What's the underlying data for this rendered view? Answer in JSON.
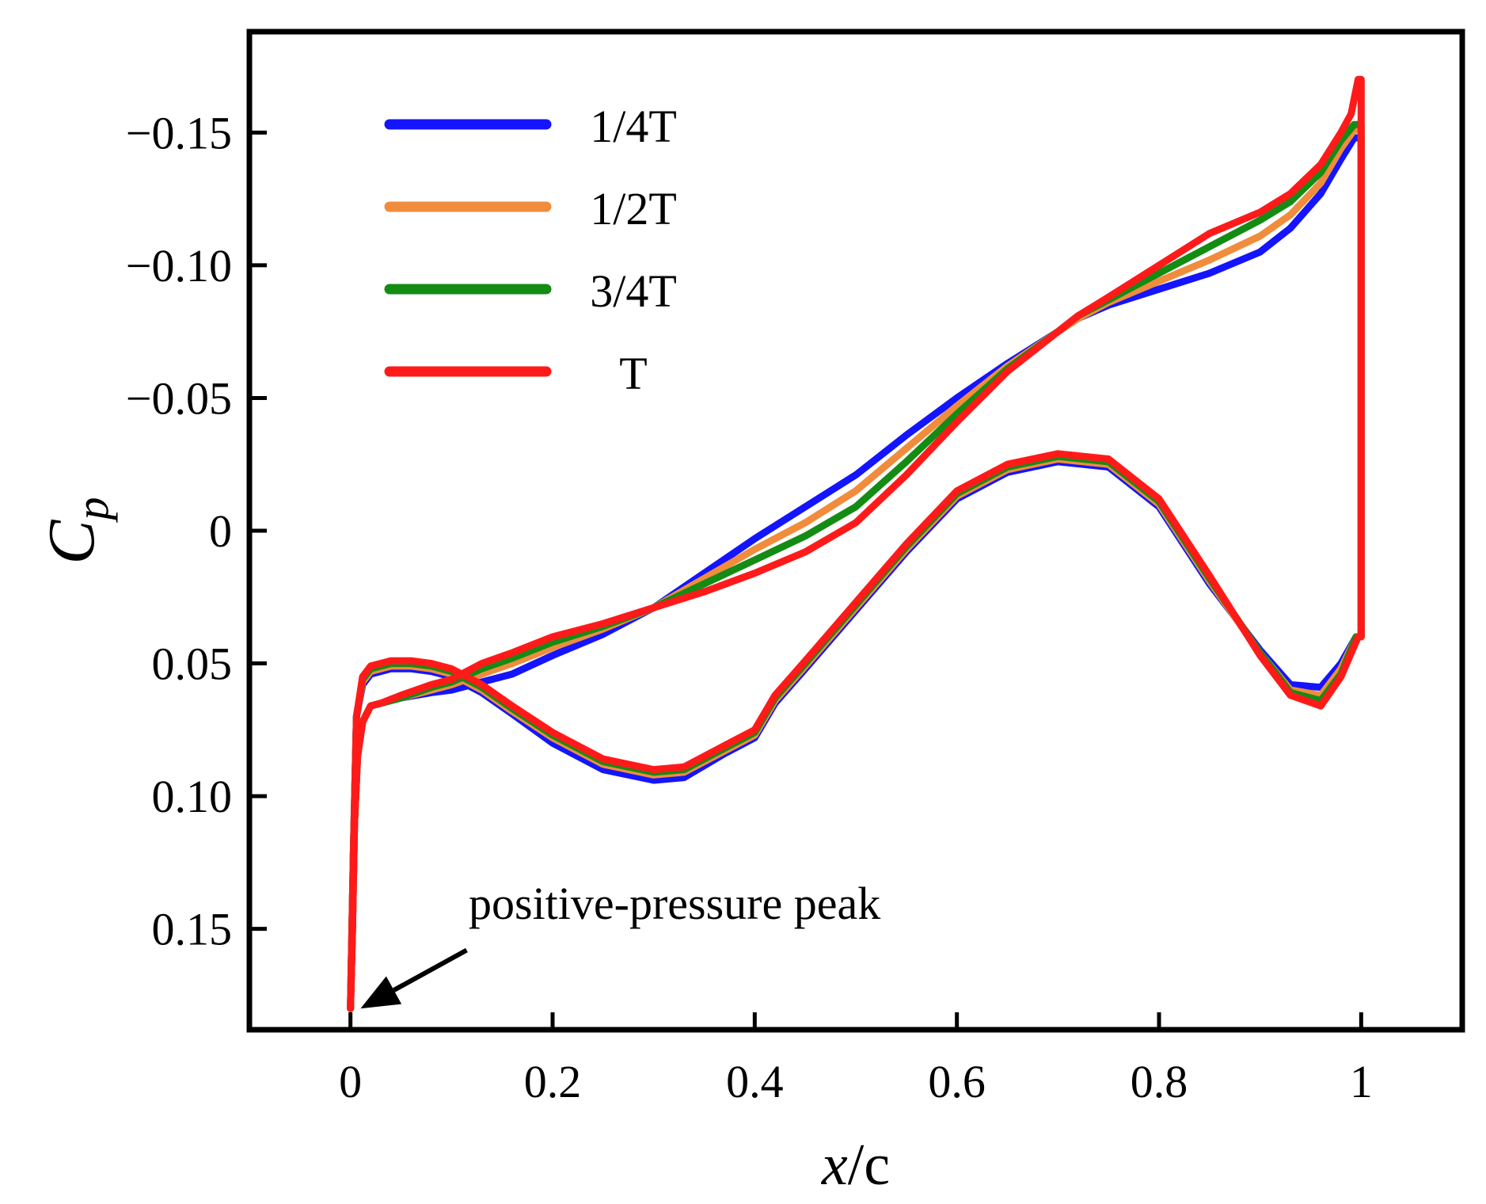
{
  "chart_data": {
    "type": "line",
    "title": "",
    "xlabel_italic": "x",
    "xlabel_rest": "/c",
    "ylabel_main": "C",
    "ylabel_sub": "p",
    "xlim": [
      -0.1,
      1.1
    ],
    "ylim": [
      0.188,
      -0.188
    ],
    "y_axis_inverted": true,
    "x_ticks": [
      0,
      0.2,
      0.4,
      0.6,
      0.8,
      1.0
    ],
    "x_tick_labels": [
      "0",
      "0.2",
      "0.4",
      "0.6",
      "0.8",
      "1"
    ],
    "y_ticks": [
      -0.15,
      -0.1,
      -0.05,
      0,
      0.05,
      0.1,
      0.15
    ],
    "y_tick_labels": [
      "−0.15",
      "−0.10",
      "−0.05",
      "0",
      "0.05",
      "0.10",
      "0.15"
    ],
    "grid": false,
    "legend_position": "top-left",
    "annotation": {
      "text": "positive-pressure peak",
      "target": [
        0.01,
        0.18
      ],
      "arrow_from": [
        0.115,
        0.158
      ]
    },
    "series": [
      {
        "name": "1/4T",
        "color": "#1414ff",
        "upper": [
          [
            0,
            0.18
          ],
          [
            0.002,
            0.15
          ],
          [
            0.004,
            0.11
          ],
          [
            0.007,
            0.085
          ],
          [
            0.012,
            0.072
          ],
          [
            0.02,
            0.066
          ],
          [
            0.03,
            0.065
          ],
          [
            0.05,
            0.063
          ],
          [
            0.08,
            0.061
          ],
          [
            0.1,
            0.06
          ],
          [
            0.13,
            0.057
          ],
          [
            0.16,
            0.054
          ],
          [
            0.2,
            0.047
          ],
          [
            0.25,
            0.039
          ],
          [
            0.3,
            0.029
          ],
          [
            0.35,
            0.016
          ],
          [
            0.4,
            0.003
          ],
          [
            0.45,
            -0.009
          ],
          [
            0.5,
            -0.021
          ],
          [
            0.55,
            -0.036
          ],
          [
            0.6,
            -0.05
          ],
          [
            0.65,
            -0.063
          ],
          [
            0.7,
            -0.075
          ],
          [
            0.72,
            -0.08
          ],
          [
            0.75,
            -0.085
          ],
          [
            0.8,
            -0.091
          ],
          [
            0.85,
            -0.097
          ],
          [
            0.9,
            -0.105
          ],
          [
            0.93,
            -0.114
          ],
          [
            0.96,
            -0.127
          ],
          [
            0.98,
            -0.14
          ],
          [
            0.993,
            -0.148
          ]
        ],
        "lower": [
          [
            0,
            0.18
          ],
          [
            0.003,
            0.12
          ],
          [
            0.006,
            0.07
          ],
          [
            0.012,
            0.058
          ],
          [
            0.02,
            0.054
          ],
          [
            0.04,
            0.052
          ],
          [
            0.06,
            0.052
          ],
          [
            0.08,
            0.053
          ],
          [
            0.1,
            0.055
          ],
          [
            0.13,
            0.061
          ],
          [
            0.16,
            0.069
          ],
          [
            0.2,
            0.08
          ],
          [
            0.25,
            0.09
          ],
          [
            0.3,
            0.094
          ],
          [
            0.33,
            0.093
          ],
          [
            0.37,
            0.084
          ],
          [
            0.4,
            0.078
          ],
          [
            0.42,
            0.065
          ],
          [
            0.45,
            0.052
          ],
          [
            0.5,
            0.03
          ],
          [
            0.55,
            0.008
          ],
          [
            0.6,
            -0.012
          ],
          [
            0.65,
            -0.022
          ],
          [
            0.7,
            -0.026
          ],
          [
            0.75,
            -0.024
          ],
          [
            0.8,
            -0.009
          ],
          [
            0.85,
            0.02
          ],
          [
            0.9,
            0.045
          ],
          [
            0.93,
            0.058
          ],
          [
            0.96,
            0.059
          ],
          [
            0.98,
            0.05
          ],
          [
            0.995,
            0.04
          ]
        ]
      },
      {
        "name": "1/2T",
        "color": "#f08c3c",
        "upper": [
          [
            0,
            0.18
          ],
          [
            0.002,
            0.15
          ],
          [
            0.004,
            0.11
          ],
          [
            0.007,
            0.085
          ],
          [
            0.012,
            0.072
          ],
          [
            0.02,
            0.066
          ],
          [
            0.03,
            0.065
          ],
          [
            0.05,
            0.063
          ],
          [
            0.08,
            0.06
          ],
          [
            0.1,
            0.058
          ],
          [
            0.13,
            0.054
          ],
          [
            0.16,
            0.05
          ],
          [
            0.2,
            0.044
          ],
          [
            0.25,
            0.037
          ],
          [
            0.3,
            0.029
          ],
          [
            0.35,
            0.018
          ],
          [
            0.4,
            0.007
          ],
          [
            0.45,
            -0.003
          ],
          [
            0.5,
            -0.015
          ],
          [
            0.55,
            -0.031
          ],
          [
            0.6,
            -0.047
          ],
          [
            0.65,
            -0.062
          ],
          [
            0.7,
            -0.075
          ],
          [
            0.72,
            -0.08
          ],
          [
            0.75,
            -0.086
          ],
          [
            0.8,
            -0.094
          ],
          [
            0.85,
            -0.102
          ],
          [
            0.9,
            -0.111
          ],
          [
            0.93,
            -0.119
          ],
          [
            0.96,
            -0.131
          ],
          [
            0.98,
            -0.144
          ],
          [
            0.993,
            -0.151
          ]
        ],
        "lower": [
          [
            0,
            0.18
          ],
          [
            0.003,
            0.12
          ],
          [
            0.006,
            0.07
          ],
          [
            0.012,
            0.057
          ],
          [
            0.02,
            0.053
          ],
          [
            0.04,
            0.051
          ],
          [
            0.06,
            0.051
          ],
          [
            0.08,
            0.052
          ],
          [
            0.1,
            0.054
          ],
          [
            0.13,
            0.06
          ],
          [
            0.16,
            0.068
          ],
          [
            0.2,
            0.078
          ],
          [
            0.25,
            0.088
          ],
          [
            0.3,
            0.092
          ],
          [
            0.33,
            0.091
          ],
          [
            0.37,
            0.083
          ],
          [
            0.4,
            0.077
          ],
          [
            0.42,
            0.064
          ],
          [
            0.45,
            0.051
          ],
          [
            0.5,
            0.029
          ],
          [
            0.55,
            0.007
          ],
          [
            0.6,
            -0.013
          ],
          [
            0.65,
            -0.023
          ],
          [
            0.7,
            -0.027
          ],
          [
            0.75,
            -0.025
          ],
          [
            0.8,
            -0.01
          ],
          [
            0.85,
            0.019
          ],
          [
            0.9,
            0.046
          ],
          [
            0.93,
            0.06
          ],
          [
            0.96,
            0.062
          ],
          [
            0.98,
            0.052
          ],
          [
            0.995,
            0.04
          ]
        ]
      },
      {
        "name": "3/4T",
        "color": "#148c14",
        "upper": [
          [
            0,
            0.18
          ],
          [
            0.002,
            0.15
          ],
          [
            0.004,
            0.11
          ],
          [
            0.007,
            0.085
          ],
          [
            0.012,
            0.072
          ],
          [
            0.02,
            0.066
          ],
          [
            0.03,
            0.065
          ],
          [
            0.05,
            0.063
          ],
          [
            0.08,
            0.059
          ],
          [
            0.1,
            0.057
          ],
          [
            0.13,
            0.052
          ],
          [
            0.16,
            0.048
          ],
          [
            0.2,
            0.042
          ],
          [
            0.25,
            0.036
          ],
          [
            0.3,
            0.029
          ],
          [
            0.35,
            0.02
          ],
          [
            0.4,
            0.011
          ],
          [
            0.45,
            0.002
          ],
          [
            0.5,
            -0.009
          ],
          [
            0.55,
            -0.026
          ],
          [
            0.6,
            -0.044
          ],
          [
            0.65,
            -0.061
          ],
          [
            0.7,
            -0.075
          ],
          [
            0.72,
            -0.081
          ],
          [
            0.75,
            -0.087
          ],
          [
            0.8,
            -0.097
          ],
          [
            0.85,
            -0.107
          ],
          [
            0.9,
            -0.117
          ],
          [
            0.93,
            -0.124
          ],
          [
            0.96,
            -0.135
          ],
          [
            0.98,
            -0.147
          ],
          [
            0.993,
            -0.153
          ]
        ],
        "lower": [
          [
            0,
            0.18
          ],
          [
            0.003,
            0.12
          ],
          [
            0.006,
            0.07
          ],
          [
            0.012,
            0.056
          ],
          [
            0.02,
            0.052
          ],
          [
            0.04,
            0.05
          ],
          [
            0.06,
            0.05
          ],
          [
            0.08,
            0.051
          ],
          [
            0.1,
            0.053
          ],
          [
            0.13,
            0.059
          ],
          [
            0.16,
            0.067
          ],
          [
            0.2,
            0.077
          ],
          [
            0.25,
            0.087
          ],
          [
            0.3,
            0.091
          ],
          [
            0.33,
            0.09
          ],
          [
            0.37,
            0.082
          ],
          [
            0.4,
            0.076
          ],
          [
            0.42,
            0.063
          ],
          [
            0.45,
            0.05
          ],
          [
            0.5,
            0.028
          ],
          [
            0.55,
            0.006
          ],
          [
            0.6,
            -0.014
          ],
          [
            0.65,
            -0.024
          ],
          [
            0.7,
            -0.028
          ],
          [
            0.75,
            -0.026
          ],
          [
            0.8,
            -0.011
          ],
          [
            0.85,
            0.018
          ],
          [
            0.9,
            0.046
          ],
          [
            0.93,
            0.061
          ],
          [
            0.96,
            0.064
          ],
          [
            0.98,
            0.054
          ],
          [
            0.995,
            0.04
          ]
        ]
      },
      {
        "name": "T",
        "color": "#ff1a1a",
        "upper": [
          [
            0,
            0.18
          ],
          [
            0.002,
            0.15
          ],
          [
            0.004,
            0.11
          ],
          [
            0.007,
            0.085
          ],
          [
            0.012,
            0.072
          ],
          [
            0.02,
            0.066
          ],
          [
            0.03,
            0.065
          ],
          [
            0.05,
            0.062
          ],
          [
            0.08,
            0.058
          ],
          [
            0.1,
            0.056
          ],
          [
            0.13,
            0.05
          ],
          [
            0.16,
            0.046
          ],
          [
            0.2,
            0.04
          ],
          [
            0.25,
            0.035
          ],
          [
            0.3,
            0.029
          ],
          [
            0.35,
            0.023
          ],
          [
            0.4,
            0.016
          ],
          [
            0.45,
            0.008
          ],
          [
            0.5,
            -0.003
          ],
          [
            0.55,
            -0.021
          ],
          [
            0.6,
            -0.041
          ],
          [
            0.65,
            -0.06
          ],
          [
            0.7,
            -0.075
          ],
          [
            0.72,
            -0.081
          ],
          [
            0.75,
            -0.088
          ],
          [
            0.8,
            -0.1
          ],
          [
            0.85,
            -0.112
          ],
          [
            0.9,
            -0.12
          ],
          [
            0.93,
            -0.127
          ],
          [
            0.96,
            -0.138
          ],
          [
            0.98,
            -0.15
          ],
          [
            0.99,
            -0.157
          ],
          [
            0.997,
            -0.17
          ]
        ],
        "lower": [
          [
            0,
            0.18
          ],
          [
            0.003,
            0.12
          ],
          [
            0.006,
            0.07
          ],
          [
            0.012,
            0.055
          ],
          [
            0.02,
            0.051
          ],
          [
            0.04,
            0.049
          ],
          [
            0.06,
            0.049
          ],
          [
            0.08,
            0.05
          ],
          [
            0.1,
            0.052
          ],
          [
            0.13,
            0.058
          ],
          [
            0.16,
            0.066
          ],
          [
            0.2,
            0.076
          ],
          [
            0.25,
            0.086
          ],
          [
            0.3,
            0.09
          ],
          [
            0.33,
            0.089
          ],
          [
            0.37,
            0.081
          ],
          [
            0.4,
            0.075
          ],
          [
            0.42,
            0.062
          ],
          [
            0.45,
            0.049
          ],
          [
            0.5,
            0.027
          ],
          [
            0.55,
            0.005
          ],
          [
            0.6,
            -0.015
          ],
          [
            0.65,
            -0.025
          ],
          [
            0.7,
            -0.029
          ],
          [
            0.75,
            -0.027
          ],
          [
            0.8,
            -0.012
          ],
          [
            0.85,
            0.017
          ],
          [
            0.9,
            0.047
          ],
          [
            0.93,
            0.062
          ],
          [
            0.96,
            0.066
          ],
          [
            0.98,
            0.055
          ],
          [
            0.997,
            0.04
          ]
        ]
      }
    ]
  }
}
